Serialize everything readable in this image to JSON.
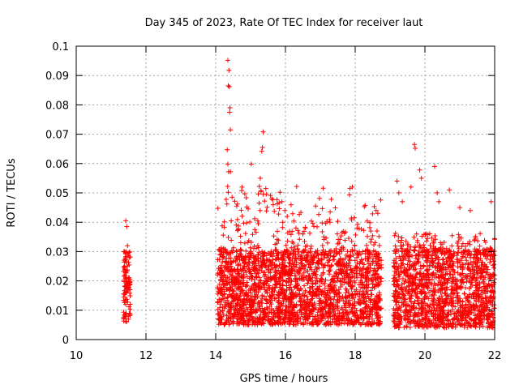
{
  "chart_data": {
    "type": "scatter",
    "title": "Day 345 of 2023, Rate Of TEC Index for receiver laut",
    "xlabel": "GPS time / hours",
    "ylabel": "ROTI / TECUs",
    "xlim": [
      10,
      22
    ],
    "ylim": [
      0,
      0.1
    ],
    "x_ticks": [
      10,
      12,
      14,
      16,
      18,
      20,
      22
    ],
    "x_tick_labels": [
      "10",
      "12",
      "14",
      "16",
      "18",
      "20",
      "22"
    ],
    "y_ticks": [
      0,
      0.01,
      0.02,
      0.03,
      0.04,
      0.05,
      0.06,
      0.07,
      0.08,
      0.09,
      0.1
    ],
    "y_tick_labels": [
      "0",
      "0.01",
      "0.02",
      "0.03",
      "0.04",
      "0.05",
      "0.06",
      "0.07",
      "0.08",
      "0.09",
      "0.1"
    ],
    "grid": true,
    "marker": "+",
    "marker_color": "#ff0000",
    "series": [
      {
        "name": "ROTI",
        "clusters": [
          {
            "x_range": [
              11.35,
              11.55
            ],
            "y_base": [
              0.006,
              0.03
            ],
            "y_max": 0.041
          },
          {
            "x_range": [
              14.05,
              18.75
            ],
            "y_base": [
              0.005,
              0.03
            ],
            "y_max": 0.095
          },
          {
            "x_range": [
              19.1,
              22.0
            ],
            "y_base": [
              0.004,
              0.03
            ],
            "y_max": 0.066
          }
        ],
        "points": [
          [
            11.42,
            0.0405
          ],
          [
            11.45,
            0.0385
          ],
          [
            11.47,
            0.032
          ],
          [
            14.35,
            0.0952
          ],
          [
            14.38,
            0.0918
          ],
          [
            14.36,
            0.0865
          ],
          [
            14.39,
            0.0862
          ],
          [
            14.41,
            0.079
          ],
          [
            14.4,
            0.0775
          ],
          [
            14.42,
            0.0715
          ],
          [
            14.33,
            0.0647
          ],
          [
            14.35,
            0.0598
          ],
          [
            14.37,
            0.0572
          ],
          [
            14.42,
            0.0572
          ],
          [
            14.3,
            0.0478
          ],
          [
            14.32,
            0.0462
          ],
          [
            14.36,
            0.0502
          ],
          [
            14.47,
            0.0485
          ],
          [
            15.02,
            0.0598
          ],
          [
            15.28,
            0.055
          ],
          [
            15.25,
            0.0522
          ],
          [
            15.3,
            0.0505
          ],
          [
            15.32,
            0.0642
          ],
          [
            15.34,
            0.0655
          ],
          [
            15.36,
            0.0708
          ],
          [
            15.4,
            0.0472
          ],
          [
            15.9,
            0.047
          ],
          [
            16.05,
            0.042
          ],
          [
            16.3,
            0.038
          ],
          [
            16.5,
            0.036
          ],
          [
            17.1,
            0.035
          ],
          [
            18.05,
            0.038
          ],
          [
            18.6,
            0.044
          ],
          [
            18.65,
            0.043
          ],
          [
            19.2,
            0.054
          ],
          [
            19.25,
            0.05
          ],
          [
            19.35,
            0.047
          ],
          [
            19.6,
            0.052
          ],
          [
            19.7,
            0.0665
          ],
          [
            19.72,
            0.0652
          ],
          [
            19.85,
            0.0578
          ],
          [
            19.9,
            0.055
          ],
          [
            20.28,
            0.059
          ],
          [
            20.35,
            0.05
          ],
          [
            20.4,
            0.047
          ],
          [
            20.7,
            0.051
          ],
          [
            21.0,
            0.045
          ],
          [
            21.3,
            0.044
          ],
          [
            21.9,
            0.047
          ]
        ]
      }
    ]
  }
}
